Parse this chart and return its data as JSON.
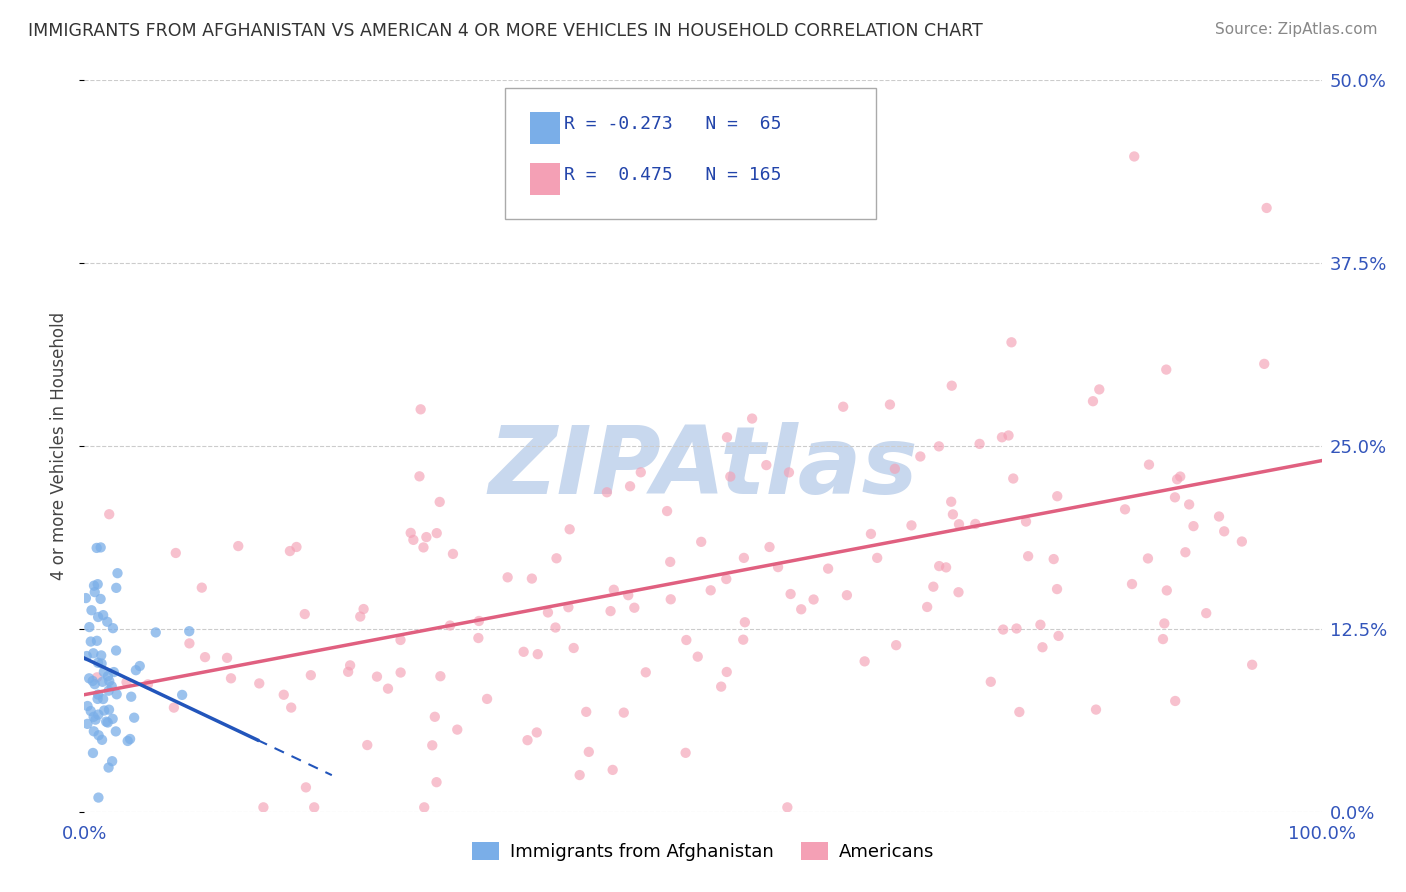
{
  "title": "IMMIGRANTS FROM AFGHANISTAN VS AMERICAN 4 OR MORE VEHICLES IN HOUSEHOLD CORRELATION CHART",
  "source": "Source: ZipAtlas.com",
  "ylabel": "4 or more Vehicles in Household",
  "legend_label1": "Immigrants from Afghanistan",
  "legend_label2": "Americans",
  "r1": -0.273,
  "n1": 65,
  "r2": 0.475,
  "n2": 165,
  "color_afg": "#7aaee8",
  "color_afg_line": "#2255bb",
  "color_usa": "#f4a0b5",
  "color_usa_line": "#e06080",
  "bg_color": "#ffffff",
  "plot_bg": "#ffffff",
  "xlim": [
    0,
    100
  ],
  "ylim": [
    0,
    50
  ],
  "ytick_vals": [
    0.0,
    12.5,
    25.0,
    37.5,
    50.0
  ],
  "afg_reg_x0": 0,
  "afg_reg_y0": 10.5,
  "afg_reg_x1": 20,
  "afg_reg_y1": 2.5,
  "afg_solid_x1": 14,
  "usa_reg_x0": 0,
  "usa_reg_y0": 8.0,
  "usa_reg_x1": 100,
  "usa_reg_y1": 24.0,
  "watermark_text": "ZIPAtlas",
  "watermark_color": "#c8d8ee",
  "seed": 123
}
